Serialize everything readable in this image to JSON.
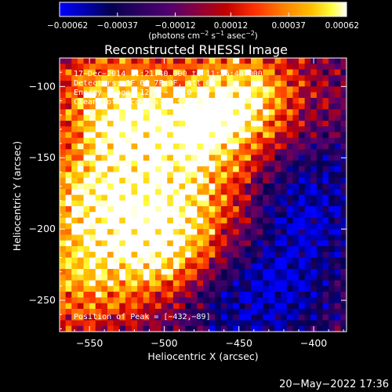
{
  "chart_data": {
    "type": "heatmap",
    "title": "Reconstructed RHESSI Image",
    "xlabel": "Heliocentric X (arcsec)",
    "ylabel": "Heliocentric Y (arcsec)",
    "xlim": [
      -570,
      -378
    ],
    "ylim": [
      -272,
      -80
    ],
    "x_ticks": [
      -550,
      -500,
      -450,
      -400
    ],
    "y_ticks": [
      -250,
      -200,
      -150,
      -100
    ],
    "x_tick_labels": [
      "−550",
      "−500",
      "−450",
      "−400"
    ],
    "y_tick_labels": [
      "−250",
      "−200",
      "−150",
      "−100"
    ],
    "colorbar": {
      "min": -0.00062,
      "max": 0.00062,
      "ticks": [
        -0.00062,
        -0.00037,
        -0.00012,
        0.00012,
        0.00037,
        0.00062
      ],
      "tick_labels": [
        "−0.00062",
        "−0.00037",
        "−0.00012",
        "0.00012",
        "0.00037",
        "0.00062"
      ],
      "label_text": "(photons cm",
      "label_sup1": "−2",
      "label_mid": " s",
      "label_sup2": "−1",
      "label_end": " asec",
      "label_sup3": "−2",
      "label_close": ")"
    },
    "annotations": [
      "17−Dec−2014 11:21:40.000 to 11:26:48.000",
      "Detectors: 3F 6F 7F 9F, Att 0",
      "Energy Range: 12.0 − 25.0 keV",
      "Clean    Total counts: 2.99E+03"
    ],
    "peak_text": "Position of Peak = [−432,−89]",
    "peak": [
      -432,
      -89
    ],
    "hot_regions": [
      {
        "x": -535,
        "y": -110,
        "intensity": 0.95
      },
      {
        "x": -505,
        "y": -215,
        "intensity": 1.0
      },
      {
        "x": -470,
        "y": -125,
        "intensity": 0.9
      },
      {
        "x": -440,
        "y": -105,
        "intensity": 0.7
      },
      {
        "x": -555,
        "y": -180,
        "intensity": 0.8
      },
      {
        "x": -510,
        "y": -155,
        "intensity": 0.55
      },
      {
        "x": -470,
        "y": -190,
        "intensity": 0.5
      },
      {
        "x": -560,
        "y": -240,
        "intensity": 0.65
      }
    ],
    "cold_regions": [
      {
        "x": -405,
        "y": -180,
        "depth": 0.9
      },
      {
        "x": -420,
        "y": -240,
        "depth": 0.7
      },
      {
        "x": -460,
        "y": -250,
        "depth": 0.6
      }
    ]
  },
  "footer": {
    "timestamp": "20−May−2022 17:36"
  }
}
